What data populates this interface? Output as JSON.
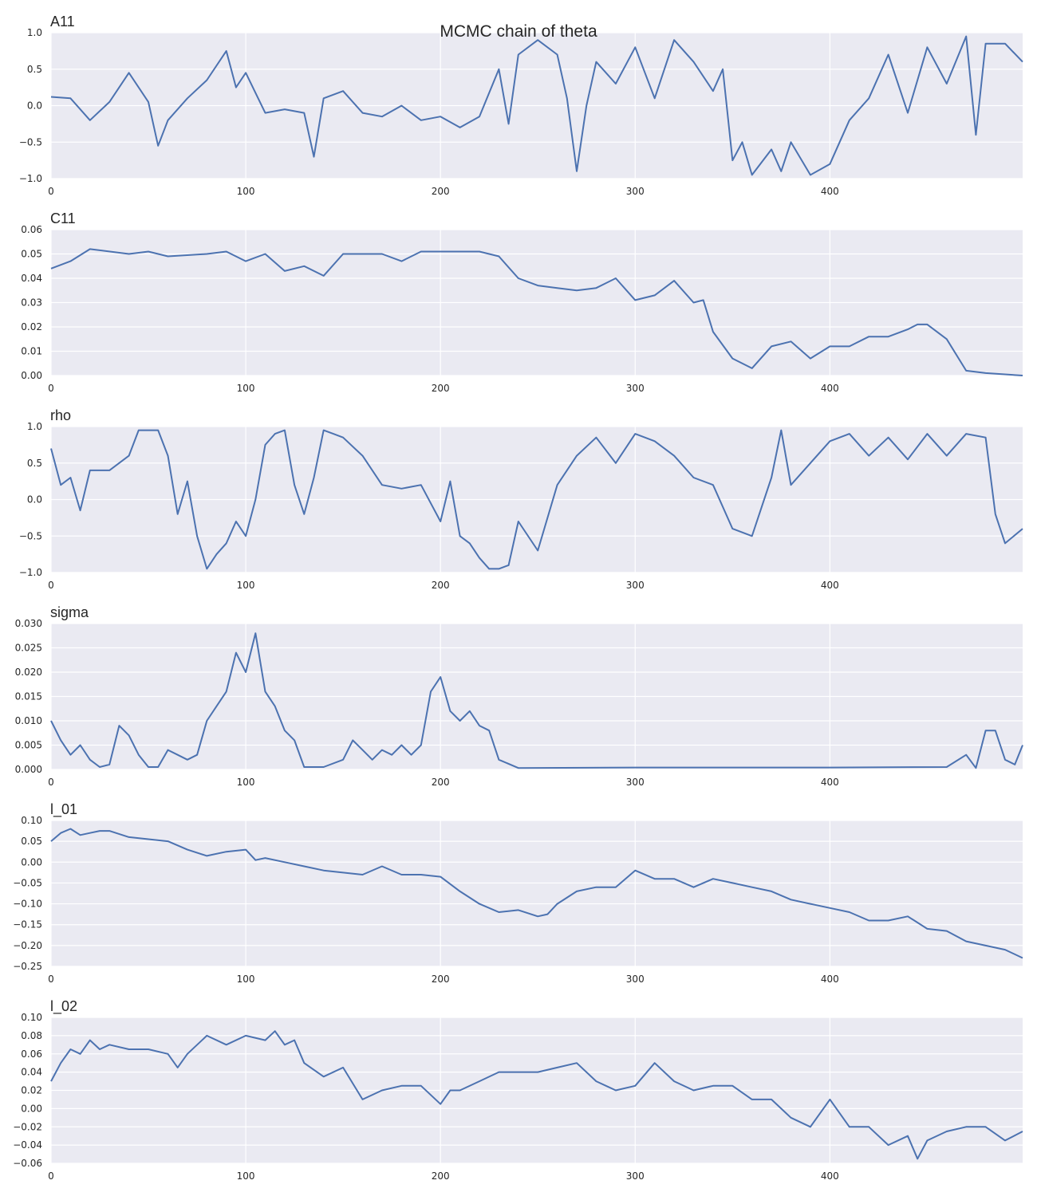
{
  "figure": {
    "title": "MCMC chain of theta",
    "background": "#ffffff",
    "axes_bg": "#eaeaf2",
    "grid_color": "#ffffff",
    "line_color": "#4c72b0",
    "grid": true
  },
  "chart_data": [
    {
      "type": "line",
      "title": "A11",
      "xlim": [
        0,
        499
      ],
      "ylim": [
        -1.0,
        1.0
      ],
      "xticks": [
        "0",
        "100",
        "200",
        "300",
        "400"
      ],
      "yticks": [
        "1.0",
        "0.5",
        "0.0",
        "−0.5",
        "−1.0"
      ],
      "x": [
        0,
        10,
        20,
        30,
        40,
        50,
        55,
        60,
        70,
        80,
        90,
        95,
        100,
        110,
        120,
        130,
        135,
        140,
        150,
        160,
        170,
        180,
        190,
        200,
        210,
        220,
        230,
        235,
        240,
        250,
        260,
        265,
        270,
        275,
        280,
        290,
        300,
        310,
        320,
        330,
        340,
        345,
        350,
        355,
        360,
        370,
        375,
        380,
        390,
        400,
        410,
        420,
        430,
        440,
        450,
        460,
        470,
        475,
        480,
        490,
        499
      ],
      "y": [
        0.12,
        0.1,
        -0.2,
        0.05,
        0.45,
        0.05,
        -0.55,
        -0.2,
        0.1,
        0.35,
        0.75,
        0.25,
        0.45,
        -0.1,
        -0.05,
        -0.1,
        -0.7,
        0.1,
        0.2,
        -0.1,
        -0.15,
        0.0,
        -0.2,
        -0.15,
        -0.3,
        -0.15,
        0.5,
        -0.25,
        0.7,
        0.9,
        0.7,
        0.1,
        -0.9,
        0.0,
        0.6,
        0.3,
        0.8,
        0.1,
        0.9,
        0.6,
        0.2,
        0.5,
        -0.75,
        -0.5,
        -0.95,
        -0.6,
        -0.9,
        -0.5,
        -0.95,
        -0.8,
        -0.2,
        0.1,
        0.7,
        -0.1,
        0.8,
        0.3,
        0.95,
        -0.4,
        0.85,
        0.85,
        0.6
      ]
    },
    {
      "type": "line",
      "title": "C11",
      "xlim": [
        0,
        499
      ],
      "ylim": [
        0.0,
        0.06
      ],
      "xticks": [
        "0",
        "100",
        "200",
        "300",
        "400"
      ],
      "yticks": [
        "0.06",
        "0.05",
        "0.04",
        "0.03",
        "0.02",
        "0.01",
        "0.00"
      ],
      "x": [
        0,
        10,
        20,
        40,
        50,
        60,
        80,
        90,
        100,
        110,
        120,
        130,
        140,
        150,
        170,
        180,
        190,
        200,
        220,
        230,
        240,
        250,
        260,
        270,
        280,
        290,
        300,
        310,
        320,
        330,
        335,
        340,
        350,
        360,
        370,
        380,
        390,
        400,
        410,
        420,
        430,
        440,
        445,
        450,
        460,
        470,
        480,
        499
      ],
      "y": [
        0.044,
        0.047,
        0.052,
        0.05,
        0.051,
        0.049,
        0.05,
        0.051,
        0.047,
        0.05,
        0.043,
        0.045,
        0.041,
        0.05,
        0.05,
        0.047,
        0.051,
        0.051,
        0.051,
        0.049,
        0.04,
        0.037,
        0.036,
        0.035,
        0.036,
        0.04,
        0.031,
        0.033,
        0.039,
        0.03,
        0.031,
        0.018,
        0.007,
        0.003,
        0.012,
        0.014,
        0.007,
        0.012,
        0.012,
        0.016,
        0.016,
        0.019,
        0.021,
        0.021,
        0.015,
        0.002,
        0.001,
        0.0
      ]
    },
    {
      "type": "line",
      "title": "rho",
      "xlim": [
        0,
        499
      ],
      "ylim": [
        -1.0,
        1.0
      ],
      "xticks": [
        "0",
        "100",
        "200",
        "300",
        "400"
      ],
      "yticks": [
        "1.0",
        "0.5",
        "0.0",
        "−0.5",
        "−1.0"
      ],
      "x": [
        0,
        5,
        10,
        15,
        20,
        30,
        40,
        45,
        55,
        60,
        65,
        70,
        75,
        80,
        85,
        90,
        95,
        100,
        105,
        110,
        115,
        120,
        125,
        130,
        135,
        140,
        145,
        150,
        160,
        170,
        180,
        190,
        200,
        205,
        210,
        215,
        220,
        225,
        230,
        235,
        240,
        250,
        260,
        270,
        280,
        290,
        300,
        310,
        320,
        330,
        340,
        350,
        360,
        370,
        375,
        380,
        390,
        400,
        410,
        420,
        430,
        440,
        450,
        460,
        470,
        480,
        485,
        490,
        499
      ],
      "y": [
        0.7,
        0.2,
        0.3,
        -0.15,
        0.4,
        0.4,
        0.6,
        0.95,
        0.95,
        0.6,
        -0.2,
        0.25,
        -0.5,
        -0.95,
        -0.75,
        -0.6,
        -0.3,
        -0.5,
        0.0,
        0.75,
        0.9,
        0.95,
        0.2,
        -0.2,
        0.3,
        0.95,
        0.9,
        0.85,
        0.6,
        0.2,
        0.15,
        0.2,
        -0.3,
        0.25,
        -0.5,
        -0.6,
        -0.8,
        -0.95,
        -0.95,
        -0.9,
        -0.3,
        -0.7,
        0.2,
        0.6,
        0.85,
        0.5,
        0.9,
        0.8,
        0.6,
        0.3,
        0.2,
        -0.4,
        -0.5,
        0.3,
        0.95,
        0.2,
        0.5,
        0.8,
        0.9,
        0.6,
        0.85,
        0.55,
        0.9,
        0.6,
        0.9,
        0.85,
        -0.2,
        -0.6,
        -0.4
      ]
    },
    {
      "type": "line",
      "title": "sigma",
      "xlim": [
        0,
        499
      ],
      "ylim": [
        0.0,
        0.03
      ],
      "xticks": [
        "0",
        "100",
        "200",
        "300",
        "400"
      ],
      "yticks": [
        "0.030",
        "0.025",
        "0.020",
        "0.015",
        "0.010",
        "0.005",
        "0.000"
      ],
      "x": [
        0,
        5,
        10,
        15,
        20,
        25,
        30,
        35,
        40,
        45,
        50,
        55,
        60,
        65,
        70,
        75,
        80,
        85,
        90,
        95,
        100,
        105,
        110,
        115,
        120,
        125,
        130,
        140,
        150,
        155,
        160,
        165,
        170,
        175,
        180,
        185,
        190,
        195,
        200,
        205,
        210,
        215,
        220,
        225,
        230,
        240,
        300,
        400,
        460,
        470,
        475,
        480,
        485,
        490,
        495,
        499
      ],
      "y": [
        0.01,
        0.006,
        0.003,
        0.005,
        0.002,
        0.0005,
        0.001,
        0.009,
        0.007,
        0.003,
        0.0005,
        0.0005,
        0.004,
        0.003,
        0.002,
        0.003,
        0.01,
        0.013,
        0.016,
        0.024,
        0.02,
        0.028,
        0.016,
        0.013,
        0.008,
        0.006,
        0.0005,
        0.0005,
        0.002,
        0.006,
        0.004,
        0.002,
        0.004,
        0.003,
        0.005,
        0.003,
        0.005,
        0.016,
        0.019,
        0.012,
        0.01,
        0.012,
        0.009,
        0.008,
        0.002,
        0.0003,
        0.0004,
        0.0004,
        0.0005,
        0.003,
        0.0003,
        0.008,
        0.008,
        0.002,
        0.001,
        0.005
      ]
    },
    {
      "type": "line",
      "title": "l_01",
      "xlim": [
        0,
        499
      ],
      "ylim": [
        -0.25,
        0.1
      ],
      "xticks": [
        "0",
        "100",
        "200",
        "300",
        "400"
      ],
      "yticks": [
        "0.10",
        "0.05",
        "0.00",
        "−0.05",
        "−0.10",
        "−0.15",
        "−0.20",
        "−0.25"
      ],
      "x": [
        0,
        5,
        10,
        15,
        20,
        25,
        30,
        40,
        50,
        60,
        70,
        80,
        90,
        100,
        105,
        110,
        120,
        130,
        140,
        150,
        160,
        170,
        180,
        190,
        200,
        210,
        220,
        230,
        240,
        250,
        255,
        260,
        270,
        280,
        290,
        300,
        310,
        320,
        330,
        340,
        350,
        360,
        370,
        380,
        390,
        400,
        410,
        420,
        430,
        440,
        450,
        460,
        470,
        480,
        490,
        499
      ],
      "y": [
        0.05,
        0.07,
        0.08,
        0.065,
        0.07,
        0.075,
        0.075,
        0.06,
        0.055,
        0.05,
        0.03,
        0.015,
        0.025,
        0.03,
        0.005,
        0.01,
        0.0,
        -0.01,
        -0.02,
        -0.025,
        -0.03,
        -0.01,
        -0.03,
        -0.03,
        -0.035,
        -0.07,
        -0.1,
        -0.12,
        -0.115,
        -0.13,
        -0.125,
        -0.1,
        -0.07,
        -0.06,
        -0.06,
        -0.02,
        -0.04,
        -0.04,
        -0.06,
        -0.04,
        -0.05,
        -0.06,
        -0.07,
        -0.09,
        -0.1,
        -0.11,
        -0.12,
        -0.14,
        -0.14,
        -0.13,
        -0.16,
        -0.165,
        -0.19,
        -0.2,
        -0.21,
        -0.23
      ]
    },
    {
      "type": "line",
      "title": "l_02",
      "xlim": [
        0,
        499
      ],
      "ylim": [
        -0.06,
        0.1
      ],
      "xticks": [
        "0",
        "100",
        "200",
        "300",
        "400"
      ],
      "yticks": [
        "0.10",
        "0.08",
        "0.06",
        "0.04",
        "0.02",
        "0.00",
        "−0.02",
        "−0.04",
        "−0.06"
      ],
      "x": [
        0,
        5,
        10,
        15,
        20,
        25,
        30,
        40,
        50,
        60,
        65,
        70,
        80,
        90,
        100,
        110,
        115,
        120,
        125,
        130,
        140,
        150,
        160,
        170,
        180,
        190,
        200,
        205,
        210,
        220,
        230,
        240,
        250,
        260,
        270,
        280,
        290,
        300,
        310,
        320,
        330,
        340,
        350,
        360,
        370,
        380,
        390,
        400,
        410,
        420,
        430,
        440,
        445,
        450,
        460,
        470,
        480,
        490,
        499
      ],
      "y": [
        0.03,
        0.05,
        0.065,
        0.06,
        0.075,
        0.065,
        0.07,
        0.065,
        0.065,
        0.06,
        0.045,
        0.06,
        0.08,
        0.07,
        0.08,
        0.075,
        0.085,
        0.07,
        0.075,
        0.05,
        0.035,
        0.045,
        0.01,
        0.02,
        0.025,
        0.025,
        0.005,
        0.02,
        0.02,
        0.03,
        0.04,
        0.04,
        0.04,
        0.045,
        0.05,
        0.03,
        0.02,
        0.025,
        0.05,
        0.03,
        0.02,
        0.025,
        0.025,
        0.01,
        0.01,
        -0.01,
        -0.02,
        0.01,
        -0.02,
        -0.02,
        -0.04,
        -0.03,
        -0.055,
        -0.035,
        -0.025,
        -0.02,
        -0.02,
        -0.035,
        -0.025
      ]
    }
  ]
}
